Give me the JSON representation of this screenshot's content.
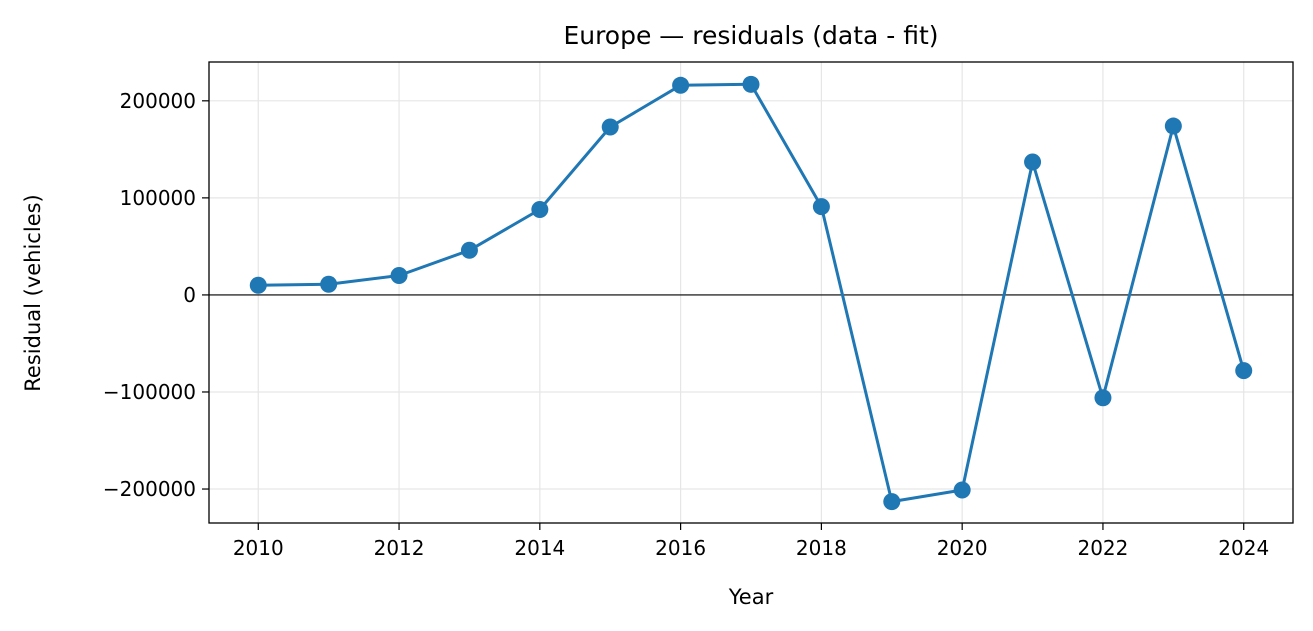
{
  "chart_data": {
    "type": "line",
    "title": "Europe — residuals (data - fit)",
    "xlabel": "Year",
    "ylabel": "Residual (vehicles)",
    "x": [
      2010,
      2011,
      2012,
      2013,
      2014,
      2015,
      2016,
      2017,
      2018,
      2019,
      2020,
      2021,
      2022,
      2023,
      2024
    ],
    "series": [
      {
        "values": [
          10000,
          11000,
          20000,
          46000,
          88000,
          173000,
          216000,
          217000,
          91000,
          -213000,
          -201000,
          137000,
          -106000,
          174000,
          -78000
        ],
        "color": "#1f77b4",
        "marker": "circle"
      }
    ],
    "xlim": [
      2009.3,
      2024.7
    ],
    "ylim": [
      -235000,
      240000
    ],
    "xticks": [
      2010,
      2012,
      2014,
      2016,
      2018,
      2020,
      2022,
      2024
    ],
    "xtick_labels": [
      "2010",
      "2012",
      "2014",
      "2016",
      "2018",
      "2020",
      "2022",
      "2024"
    ],
    "yticks": [
      -200000,
      -100000,
      0,
      100000,
      200000
    ],
    "ytick_labels": [
      "−200000",
      "−100000",
      "0",
      "100000",
      "200000"
    ],
    "zero_line": true,
    "grid": true,
    "legend": false
  }
}
